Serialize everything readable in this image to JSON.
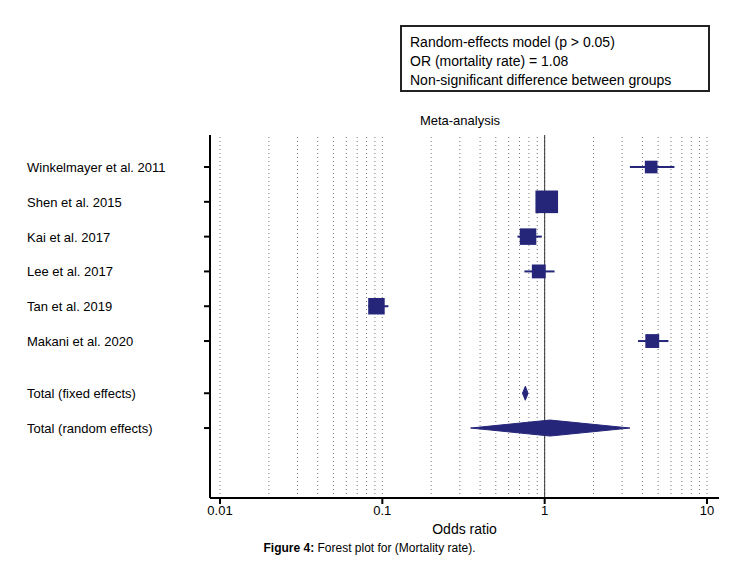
{
  "chart_data": {
    "type": "forest",
    "title": "Meta-analysis",
    "caption_label": "Figure 4:",
    "caption": "Forest plot for (Mortality rate).",
    "annotation": [
      "Random-effects model (p > 0.05)",
      "OR (mortality rate) = 1.08",
      "Non-significant difference between groups"
    ],
    "x_label": "Odds ratio",
    "log": "x",
    "grid": true,
    "xlim": [
      0.01,
      10
    ],
    "xticks": [
      0.01,
      0.1,
      1,
      10
    ],
    "reference_line": 1,
    "color": "#25267a",
    "categories": [
      "Winkelmayer et al. 2011",
      "Shen et al. 2015",
      "Kai et al. 2017",
      "Lee et al. 2017",
      "Tan et al. 2019",
      "Makani et al. 2020"
    ],
    "values": [
      4.53,
      1.03,
      0.79,
      0.92,
      0.092,
      4.6
    ],
    "ci_low": [
      3.35,
      0.97,
      0.68,
      0.75,
      0.082,
      3.76
    ],
    "ci_high": [
      6.3,
      1.09,
      0.96,
      1.15,
      0.109,
      5.79
    ],
    "weights": [
      10,
      32,
      17,
      12,
      17,
      12
    ],
    "pooled": [
      {
        "name": "Total (fixed effects)",
        "value": 0.76,
        "ci_low": 0.73,
        "ci_high": 0.79
      },
      {
        "name": "Total (random effects)",
        "value": 1.08,
        "ci_low": 0.35,
        "ci_high": 3.35
      }
    ]
  }
}
